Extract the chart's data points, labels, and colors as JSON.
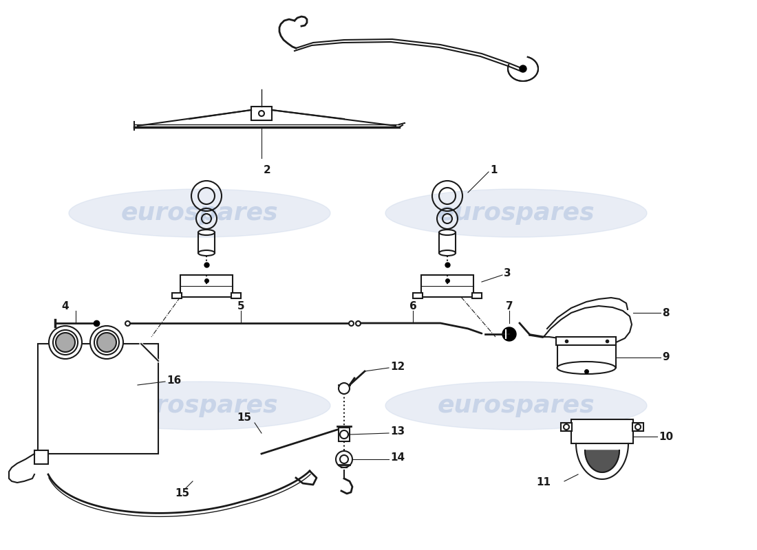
{
  "background_color": "#ffffff",
  "watermark_text": "eurospares",
  "watermark_color": "#c8d4e8",
  "line_color": "#1a1a1a",
  "label_color": "#1a1a1a",
  "font_size_labels": 10
}
